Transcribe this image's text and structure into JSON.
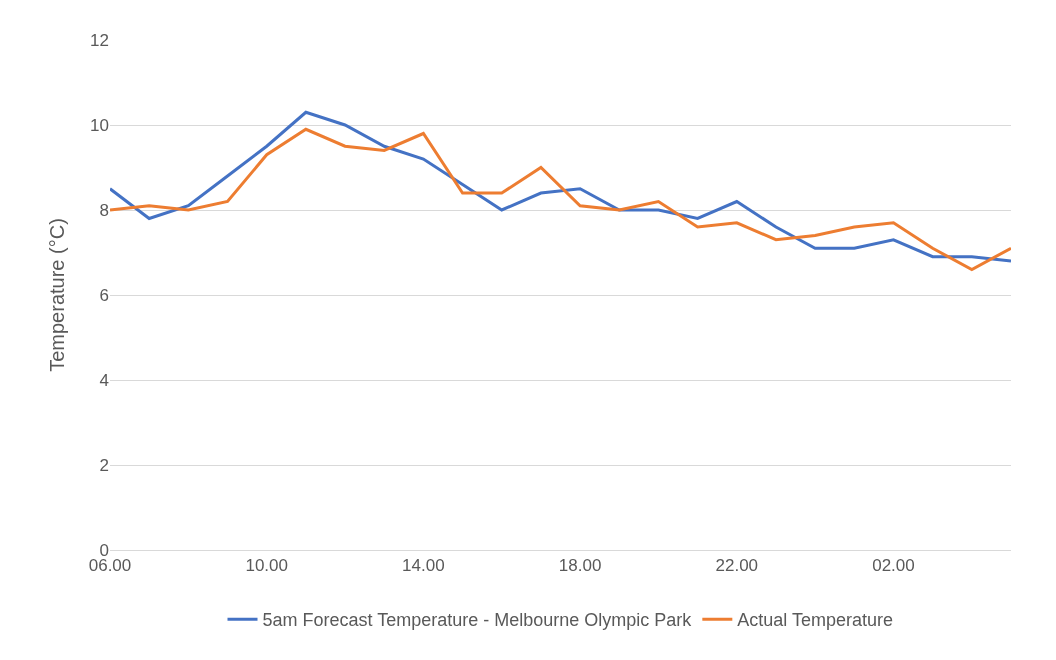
{
  "chart_data": {
    "type": "line",
    "ylabel": "Temperature (°C)",
    "categories": [
      "06.00",
      null,
      null,
      null,
      "10.00",
      null,
      null,
      null,
      "14.00",
      null,
      null,
      null,
      "18.00",
      null,
      null,
      null,
      "22.00",
      null,
      null,
      null,
      "02.00",
      null,
      null,
      null
    ],
    "series": [
      {
        "name": "5am Forecast Temperature - Melbourne Olympic Park",
        "color": "#4472c4",
        "values": [
          8.5,
          7.8,
          8.1,
          8.8,
          9.5,
          10.3,
          10.0,
          9.5,
          9.2,
          8.6,
          8.0,
          8.4,
          8.5,
          8.0,
          8.0,
          7.8,
          8.2,
          7.6,
          7.1,
          7.1,
          7.3,
          6.9,
          6.9,
          6.8
        ]
      },
      {
        "name": "Actual Temperature",
        "color": "#ed7d31",
        "values": [
          8.0,
          8.1,
          8.0,
          8.2,
          9.3,
          9.9,
          9.5,
          9.4,
          9.8,
          8.4,
          8.4,
          9.0,
          8.1,
          8.0,
          8.2,
          7.6,
          7.7,
          7.3,
          7.4,
          7.6,
          7.7,
          7.1,
          6.6,
          7.1
        ]
      }
    ],
    "ylim": [
      0,
      12
    ],
    "yticks": [
      0,
      2,
      4,
      6,
      8,
      10,
      12
    ],
    "grid": "y",
    "legend": "bottom",
    "marker": "none",
    "line_style": "solid"
  }
}
